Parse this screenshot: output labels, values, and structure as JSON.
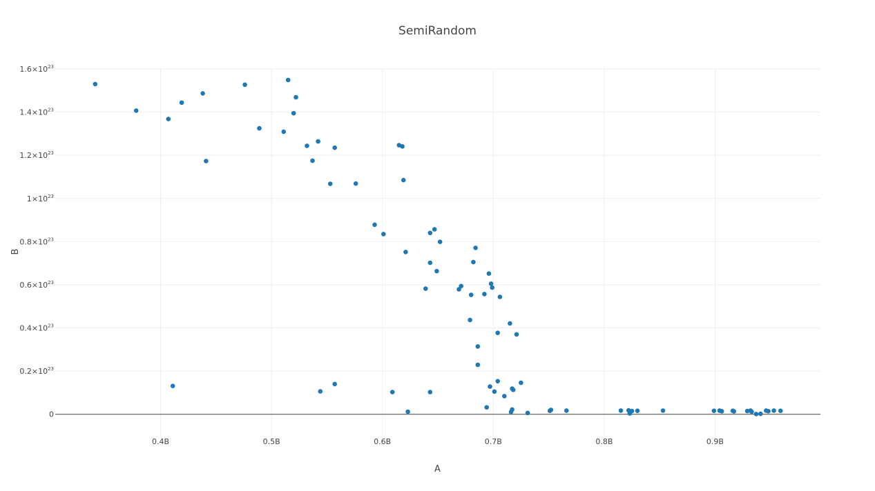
{
  "chart_data": {
    "type": "scatter",
    "title": "SemiRandom",
    "xlabel": "A",
    "ylabel": "B",
    "xlim": [
      0.305,
      0.995
    ],
    "ylim": [
      -0.1,
      1.6
    ],
    "marker_color": "#1f77b4",
    "grid": true,
    "x_ticks": [
      {
        "value": 0.4,
        "label": "0.4B"
      },
      {
        "value": 0.5,
        "label": "0.5B"
      },
      {
        "value": 0.6,
        "label": "0.6B"
      },
      {
        "value": 0.7,
        "label": "0.7B"
      },
      {
        "value": 0.8,
        "label": "0.8B"
      },
      {
        "value": 0.9,
        "label": "0.9B"
      }
    ],
    "y_ticks": [
      {
        "value": 0,
        "mant": "0",
        "exp": ""
      },
      {
        "value": 0.2,
        "mant": "0.2×10",
        "exp": "23"
      },
      {
        "value": 0.4,
        "mant": "0.4×10",
        "exp": "23"
      },
      {
        "value": 0.6,
        "mant": "0.6×10",
        "exp": "23"
      },
      {
        "value": 0.8,
        "mant": "0.8×10",
        "exp": "23"
      },
      {
        "value": 1.0,
        "mant": "1×10",
        "exp": "23"
      },
      {
        "value": 1.2,
        "mant": "1.2×10",
        "exp": "23"
      },
      {
        "value": 1.4,
        "mant": "1.4×10",
        "exp": "23"
      },
      {
        "value": 1.6,
        "mant": "1.6×10",
        "exp": "23"
      }
    ],
    "points": [
      [
        0.341,
        1.53
      ],
      [
        0.378,
        1.407
      ],
      [
        0.407,
        1.368
      ],
      [
        0.419,
        1.444
      ],
      [
        0.438,
        1.487
      ],
      [
        0.441,
        1.173
      ],
      [
        0.476,
        1.527
      ],
      [
        0.489,
        1.325
      ],
      [
        0.511,
        1.309
      ],
      [
        0.515,
        1.549
      ],
      [
        0.52,
        1.395
      ],
      [
        0.522,
        1.469
      ],
      [
        0.532,
        1.244
      ],
      [
        0.537,
        1.175
      ],
      [
        0.542,
        1.264
      ],
      [
        0.553,
        1.068
      ],
      [
        0.557,
        1.235
      ],
      [
        0.576,
        1.069
      ],
      [
        0.615,
        1.247
      ],
      [
        0.618,
        1.241
      ],
      [
        0.619,
        1.085
      ],
      [
        0.593,
        0.878
      ],
      [
        0.601,
        0.835
      ],
      [
        0.621,
        0.752
      ],
      [
        0.643,
        0.84
      ],
      [
        0.647,
        0.857
      ],
      [
        0.652,
        0.799
      ],
      [
        0.643,
        0.702
      ],
      [
        0.649,
        0.663
      ],
      [
        0.639,
        0.582
      ],
      [
        0.669,
        0.579
      ],
      [
        0.671,
        0.594
      ],
      [
        0.68,
        0.553
      ],
      [
        0.682,
        0.705
      ],
      [
        0.684,
        0.771
      ],
      [
        0.692,
        0.557
      ],
      [
        0.696,
        0.652
      ],
      [
        0.698,
        0.605
      ],
      [
        0.699,
        0.587
      ],
      [
        0.706,
        0.544
      ],
      [
        0.679,
        0.437
      ],
      [
        0.686,
        0.314
      ],
      [
        0.686,
        0.229
      ],
      [
        0.704,
        0.377
      ],
      [
        0.715,
        0.421
      ],
      [
        0.721,
        0.37
      ],
      [
        0.411,
        0.131
      ],
      [
        0.544,
        0.106
      ],
      [
        0.557,
        0.14
      ],
      [
        0.609,
        0.103
      ],
      [
        0.643,
        0.103
      ],
      [
        0.623,
        0.012
      ],
      [
        0.694,
        0.032
      ],
      [
        0.697,
        0.128
      ],
      [
        0.701,
        0.105
      ],
      [
        0.704,
        0.153
      ],
      [
        0.71,
        0.084
      ],
      [
        0.716,
        0.011
      ],
      [
        0.717,
        0.022
      ],
      [
        0.717,
        0.119
      ],
      [
        0.718,
        0.113
      ],
      [
        0.725,
        0.146
      ],
      [
        0.731,
        0.006
      ],
      [
        0.751,
        0.016
      ],
      [
        0.752,
        0.02
      ],
      [
        0.766,
        0.017
      ],
      [
        0.815,
        0.017
      ],
      [
        0.822,
        0.018
      ],
      [
        0.823,
        0.012
      ],
      [
        0.823,
        0.004
      ],
      [
        0.825,
        0.015
      ],
      [
        0.83,
        0.016
      ],
      [
        0.853,
        0.017
      ],
      [
        0.899,
        0.016
      ],
      [
        0.904,
        0.017
      ],
      [
        0.906,
        0.014
      ],
      [
        0.916,
        0.016
      ],
      [
        0.917,
        0.013
      ],
      [
        0.929,
        0.015
      ],
      [
        0.932,
        0.017
      ],
      [
        0.933,
        0.012
      ],
      [
        0.937,
        0.001
      ],
      [
        0.941,
        0.002
      ],
      [
        0.946,
        0.017
      ],
      [
        0.948,
        0.014
      ],
      [
        0.953,
        0.017
      ],
      [
        0.959,
        0.016
      ]
    ]
  }
}
